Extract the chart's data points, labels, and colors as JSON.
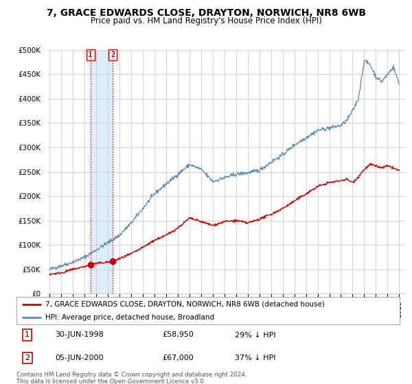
{
  "title": "7, GRACE EDWARDS CLOSE, DRAYTON, NORWICH, NR8 6WB",
  "subtitle": "Price paid vs. HM Land Registry's House Price Index (HPI)",
  "ylabel_ticks": [
    "£0",
    "£50K",
    "£100K",
    "£150K",
    "£200K",
    "£250K",
    "£300K",
    "£350K",
    "£400K",
    "£450K",
    "£500K"
  ],
  "ytick_vals": [
    0,
    50000,
    100000,
    150000,
    200000,
    250000,
    300000,
    350000,
    400000,
    450000,
    500000
  ],
  "ylim": [
    0,
    500000
  ],
  "xlim_start": 1994.8,
  "xlim_end": 2025.5,
  "sale1_date": 1998.49,
  "sale1_price": 58950,
  "sale2_date": 2000.42,
  "sale2_price": 67000,
  "red_line_color": "#cc0000",
  "blue_line_color": "#5588bb",
  "shade_color": "#ddeeff",
  "vline_color": "#cc0000",
  "background_color": "#ffffff",
  "grid_color": "#cccccc",
  "legend_label_red": "7, GRACE EDWARDS CLOSE, DRAYTON, NORWICH, NR8 6WB (detached house)",
  "legend_label_blue": "HPI: Average price, detached house, Broadland",
  "table_entries": [
    {
      "num": "1",
      "date": "30-JUN-1998",
      "price": "£58,950",
      "hpi": "29% ↓ HPI"
    },
    {
      "num": "2",
      "date": "05-JUN-2000",
      "price": "£67,000",
      "hpi": "37% ↓ HPI"
    }
  ],
  "footnote": "Contains HM Land Registry data © Crown copyright and database right 2024.\nThis data is licensed under the Open Government Licence v3.0.",
  "title_fontsize": 10,
  "subtitle_fontsize": 8.5,
  "tick_fontsize": 7.5
}
